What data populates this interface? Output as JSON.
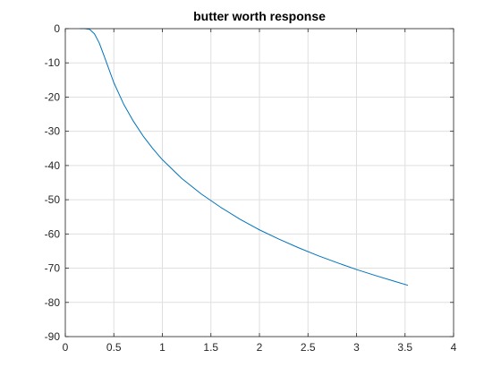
{
  "chart_data": {
    "type": "line",
    "title": "butter worth response",
    "xlabel": "",
    "ylabel": "",
    "xlim": [
      0,
      4
    ],
    "ylim": [
      -90,
      0
    ],
    "grid": true,
    "legend": "none",
    "x_ticks": [
      "0",
      "0.5",
      "1",
      "1.5",
      "2",
      "2.5",
      "3",
      "3.5",
      "4"
    ],
    "y_ticks": [
      "0",
      "-10",
      "-20",
      "-30",
      "-40",
      "-50",
      "-60",
      "-70",
      "-80",
      "-90"
    ],
    "series": [
      {
        "color": "#0072bd",
        "x": [
          0.15,
          0.2,
          0.25,
          0.3,
          0.35,
          0.4,
          0.5,
          0.6,
          0.7,
          0.8,
          0.9,
          1.0,
          1.2,
          1.4,
          1.6,
          1.8,
          2.0,
          2.2,
          2.4,
          2.6,
          2.8,
          3.0,
          3.2,
          3.4,
          3.53
        ],
        "y": [
          0,
          0,
          -0.2,
          -1.5,
          -4.2,
          -8.0,
          -15.8,
          -22.0,
          -27.0,
          -31.3,
          -35.0,
          -38.3,
          -43.8,
          -48.3,
          -52.2,
          -55.7,
          -58.8,
          -61.5,
          -64.0,
          -66.3,
          -68.4,
          -70.4,
          -72.2,
          -73.9,
          -75.0
        ]
      }
    ]
  }
}
